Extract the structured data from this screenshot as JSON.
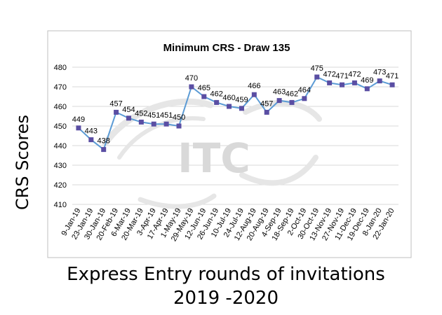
{
  "chart_data": {
    "type": "line",
    "title": "Minimum CRS - Draw 135",
    "ylabel": "CRS Scores",
    "xlabel_line1": "Express Entry rounds of invitations",
    "xlabel_line2": "2019 -2020",
    "ylim": [
      410,
      480
    ],
    "yticks": [
      "410",
      "420",
      "430",
      "440",
      "450",
      "460",
      "470",
      "480"
    ],
    "grid": true,
    "legend": "none",
    "watermark": "ITC",
    "line_color": "#5b9bd5",
    "marker_color": "#5a4ea3",
    "categories": [
      "9-Jan-19",
      "23-Jan-19",
      "30-Jan-19",
      "20-Feb-19",
      "6-Mar-19",
      "20-Mar-19",
      "3-Apr-19",
      "17-Apr-19",
      "1-May-19",
      "29-May-19",
      "12-Jun-19",
      "26-Jun-19",
      "10-Jul-19",
      "24-Jul-19",
      "12-Aug-19",
      "20-Aug-19",
      "4-Sep-19",
      "18-Sep-19",
      "2-Oct-19",
      "30-Oct-19",
      "13-Nov-19",
      "27-Nov-19",
      "11-Dec-19",
      "19-Dec-19",
      "8-Jan-20",
      "22-Jan-20"
    ],
    "values": [
      449,
      443,
      438,
      457,
      454,
      452,
      451,
      451,
      450,
      470,
      465,
      462,
      460,
      459,
      466,
      457,
      463,
      462,
      464,
      475,
      472,
      471,
      472,
      469,
      473,
      471
    ],
    "labels": [
      "449",
      "443",
      "438",
      "457",
      "454",
      "452",
      "451",
      "451",
      "450",
      "470",
      "465",
      "462",
      "460",
      "459",
      "466",
      "457",
      "463",
      "462",
      "464",
      "475",
      "472",
      "471",
      "472",
      "469",
      "473",
      "471"
    ]
  }
}
